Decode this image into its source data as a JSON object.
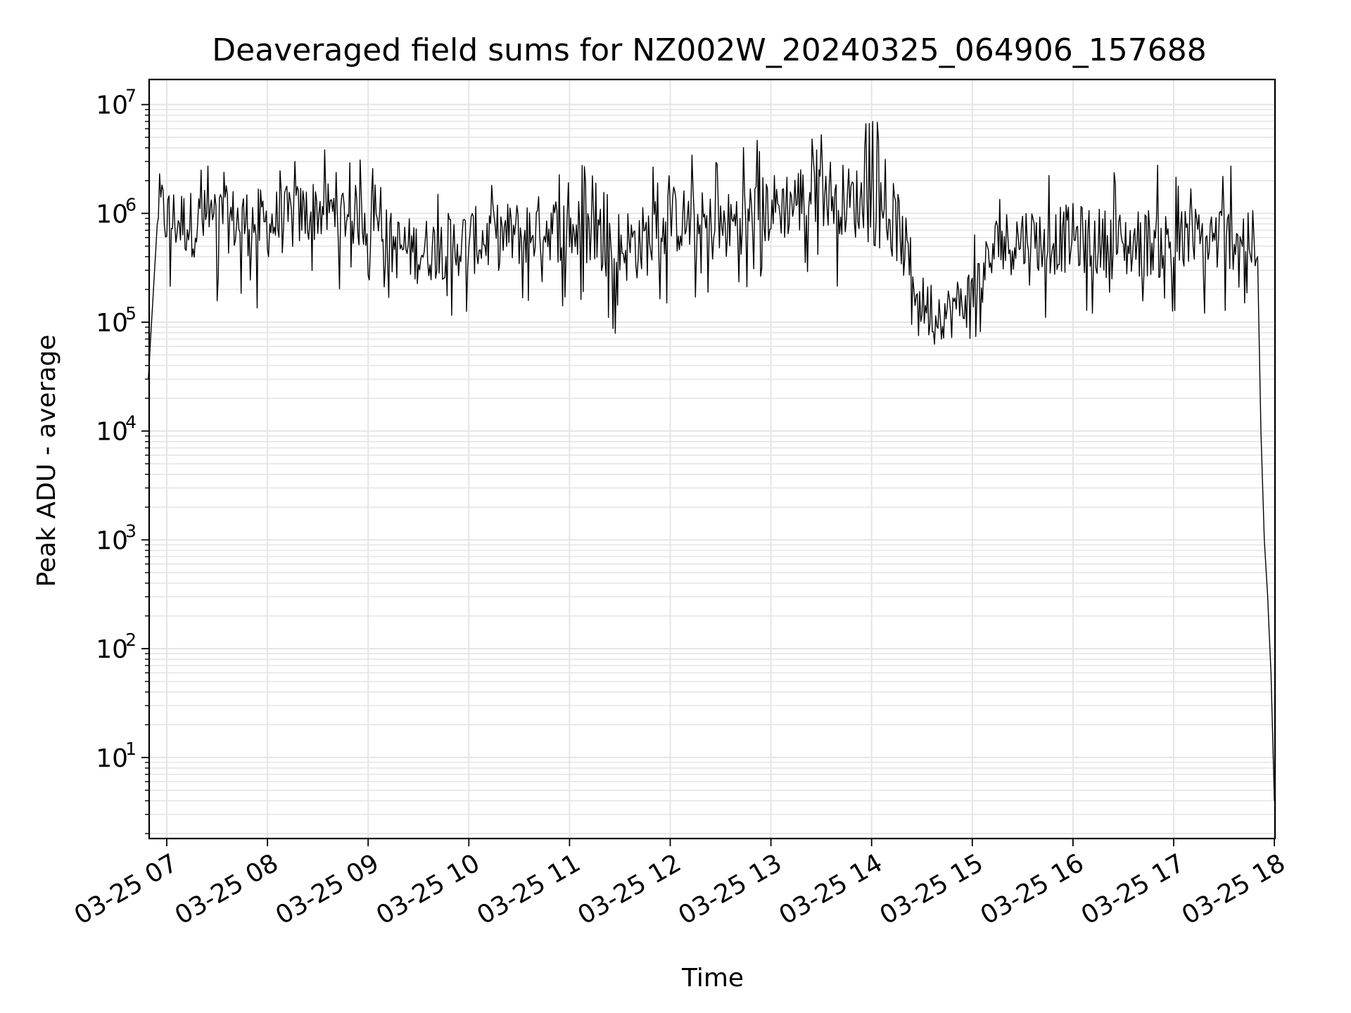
{
  "chart_data": {
    "type": "line",
    "title": "Deaveraged field sums for NZ002W_20240325_064906_157688",
    "xlabel": "Time",
    "ylabel": "Peak ADU - average",
    "y_scale": "log",
    "ylim": [
      1.8,
      17000000
    ],
    "x_range": [
      "2024-03-25 06:49",
      "2024-03-25 18:00"
    ],
    "x_ticks": [
      {
        "value": "2024-03-25 07:00",
        "label": "03-25 07"
      },
      {
        "value": "2024-03-25 08:00",
        "label": "03-25 08"
      },
      {
        "value": "2024-03-25 09:00",
        "label": "03-25 09"
      },
      {
        "value": "2024-03-25 10:00",
        "label": "03-25 10"
      },
      {
        "value": "2024-03-25 11:00",
        "label": "03-25 11"
      },
      {
        "value": "2024-03-25 12:00",
        "label": "03-25 12"
      },
      {
        "value": "2024-03-25 13:00",
        "label": "03-25 13"
      },
      {
        "value": "2024-03-25 14:00",
        "label": "03-25 14"
      },
      {
        "value": "2024-03-25 15:00",
        "label": "03-25 15"
      },
      {
        "value": "2024-03-25 16:00",
        "label": "03-25 16"
      },
      {
        "value": "2024-03-25 17:00",
        "label": "03-25 17"
      },
      {
        "value": "2024-03-25 18:00",
        "label": "03-25 18"
      }
    ],
    "y_ticks": [
      {
        "value": 10,
        "base": "10",
        "exp": "1"
      },
      {
        "value": 100,
        "base": "10",
        "exp": "2"
      },
      {
        "value": 1000,
        "base": "10",
        "exp": "3"
      },
      {
        "value": 10000,
        "base": "10",
        "exp": "4"
      },
      {
        "value": 100000,
        "base": "10",
        "exp": "5"
      },
      {
        "value": 1000000,
        "base": "10",
        "exp": "6"
      },
      {
        "value": 10000000,
        "base": "10",
        "exp": "7"
      }
    ],
    "grid": true,
    "grid_minor": true,
    "line_color": "#000000",
    "grid_color": "#e5e5e5",
    "series": [
      {
        "x": [
          "2024-03-25 06:49",
          "2024-03-25 06:55",
          "2024-03-25 07:00",
          "2024-03-25 07:15",
          "2024-03-25 07:30",
          "2024-03-25 07:45",
          "2024-03-25 08:00",
          "2024-03-25 08:15",
          "2024-03-25 08:30",
          "2024-03-25 08:45",
          "2024-03-25 09:00",
          "2024-03-25 09:15",
          "2024-03-25 09:30",
          "2024-03-25 09:45",
          "2024-03-25 10:00",
          "2024-03-25 10:15",
          "2024-03-25 10:30",
          "2024-03-25 10:45",
          "2024-03-25 11:00",
          "2024-03-25 11:15",
          "2024-03-25 11:30",
          "2024-03-25 11:45",
          "2024-03-25 12:00",
          "2024-03-25 12:15",
          "2024-03-25 12:30",
          "2024-03-25 12:45",
          "2024-03-25 13:00",
          "2024-03-25 13:15",
          "2024-03-25 13:30",
          "2024-03-25 13:45",
          "2024-03-25 14:00",
          "2024-03-25 14:15",
          "2024-03-25 14:30",
          "2024-03-25 14:45",
          "2024-03-25 15:00",
          "2024-03-25 15:15",
          "2024-03-25 15:30",
          "2024-03-25 15:45",
          "2024-03-25 16:00",
          "2024-03-25 16:15",
          "2024-03-25 16:30",
          "2024-03-25 16:45",
          "2024-03-25 17:00",
          "2024-03-25 17:15",
          "2024-03-25 17:30",
          "2024-03-25 17:45",
          "2024-03-25 17:50",
          "2024-03-25 17:52",
          "2024-03-25 17:54",
          "2024-03-25 17:56",
          "2024-03-25 17:58",
          "2024-03-25 18:00"
        ],
        "values": [
          30000,
          1200000,
          900000,
          800000,
          900000,
          850000,
          800000,
          900000,
          1100000,
          1000000,
          900000,
          500000,
          450000,
          500000,
          550000,
          600000,
          650000,
          750000,
          700000,
          650000,
          500000,
          550000,
          900000,
          800000,
          700000,
          950000,
          1100000,
          1300000,
          1700000,
          1300000,
          1200000,
          800000,
          150000,
          120000,
          180000,
          500000,
          600000,
          550000,
          600000,
          550000,
          500000,
          550000,
          500000,
          550000,
          600000,
          650000,
          400000,
          10000,
          1000,
          300,
          60,
          4
        ],
        "low": [
          30000,
          200000,
          150000,
          120000,
          150000,
          130000,
          120000,
          150000,
          200000,
          200000,
          150000,
          90000,
          80000,
          100000,
          100000,
          110000,
          120000,
          130000,
          120000,
          110000,
          60000,
          80000,
          150000,
          150000,
          150000,
          150000,
          180000,
          200000,
          200000,
          200000,
          200000,
          100000,
          60000,
          50000,
          50000,
          100000,
          120000,
          100000,
          110000,
          100000,
          90000,
          100000,
          90000,
          100000,
          110000,
          120000,
          90000,
          10000,
          1000,
          300,
          60,
          4
        ],
        "high": [
          30000,
          4500000,
          3500000,
          3000000,
          3500000,
          3300000,
          3300000,
          3600000,
          4000000,
          3500000,
          3300000,
          2000000,
          1800000,
          2300000,
          2500000,
          2800000,
          3000000,
          3200000,
          3000000,
          2800000,
          2500000,
          2700000,
          4000000,
          4000000,
          3800000,
          4500000,
          5500000,
          6000000,
          6500000,
          6000000,
          8500000,
          4000000,
          800000,
          700000,
          900000,
          2500000,
          2800000,
          2600000,
          2800000,
          2700000,
          2500000,
          2800000,
          2800000,
          3500000,
          3000000,
          2800000,
          2000000,
          10000,
          1000,
          300,
          60,
          4
        ]
      }
    ]
  }
}
